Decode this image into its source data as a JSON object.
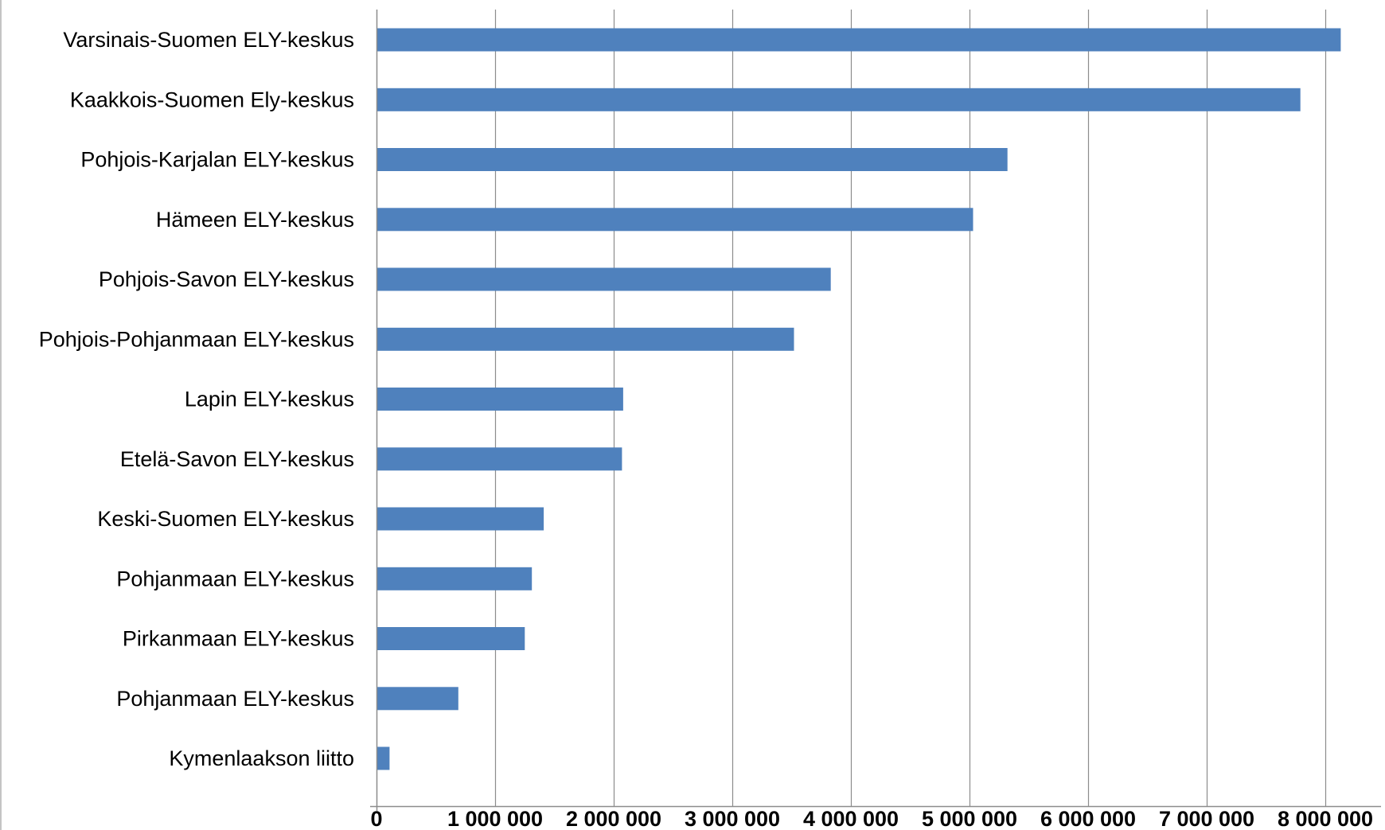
{
  "chart_data": {
    "type": "bar",
    "orientation": "horizontal",
    "title": "",
    "xlabel": "",
    "ylabel": "",
    "categories": [
      "Varsinais-Suomen ELY-keskus",
      "Kaakkois-Suomen Ely-keskus",
      "Pohjois-Karjalan ELY-keskus",
      "Hämeen ELY-keskus",
      "Pohjois-Savon ELY-keskus",
      "Pohjois-Pohjanmaan ELY-keskus",
      "Lapin ELY-keskus",
      "Etelä-Savon ELY-keskus",
      "Keski-Suomen ELY-keskus",
      "Pohjanmaan ELY-keskus",
      "Pirkanmaan ELY-keskus",
      "Pohjanmaan ELY-keskus",
      "Kymenlaakson liitto"
    ],
    "values": [
      8130000,
      7790000,
      5320000,
      5030000,
      3830000,
      3520000,
      2080000,
      2070000,
      1410000,
      1310000,
      1250000,
      690000,
      110000
    ],
    "xlim": [
      0,
      8500000
    ],
    "x_ticks": [
      0,
      1000000,
      2000000,
      3000000,
      4000000,
      5000000,
      6000000,
      7000000,
      8000000
    ],
    "x_tick_labels": [
      "0",
      "1 000 000",
      "2 000 000",
      "3 000 000",
      "4 000 000",
      "5 000 000",
      "6 000 000",
      "7 000 000",
      "8 000 000"
    ],
    "grid": "vertical",
    "legend": "none",
    "colors": {
      "bar": "#4f81bd",
      "grid": "#8c8c8c",
      "axis": "#8c8c8c",
      "text": "#000000"
    }
  }
}
